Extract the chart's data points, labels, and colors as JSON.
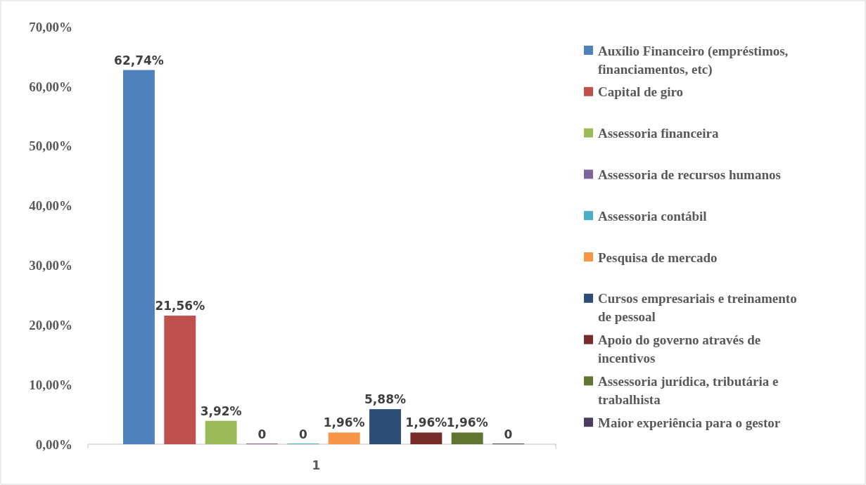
{
  "chart_data": {
    "type": "bar",
    "categories": [
      "1"
    ],
    "ylim": [
      0,
      70
    ],
    "yticks": [
      {
        "value": 0,
        "label": "0,00%"
      },
      {
        "value": 10,
        "label": "10,00%"
      },
      {
        "value": 20,
        "label": "20,00%"
      },
      {
        "value": 30,
        "label": "30,00%"
      },
      {
        "value": 40,
        "label": "40,00%"
      },
      {
        "value": 50,
        "label": "50,00%"
      },
      {
        "value": 60,
        "label": "60,00%"
      },
      {
        "value": 70,
        "label": "70,00%"
      }
    ],
    "grid": false,
    "legend": "right",
    "series": [
      {
        "name": "Auxílio Financeiro (empréstimos, financiamentos, etc)",
        "color": "#4f81bd",
        "values": [
          62.74
        ],
        "value_labels": [
          "62,74%"
        ]
      },
      {
        "name": "Capital de giro",
        "color": "#c0504d",
        "values": [
          21.56
        ],
        "value_labels": [
          "21,56%"
        ]
      },
      {
        "name": "Assessoria financeira",
        "color": "#9bbb59",
        "values": [
          3.92
        ],
        "value_labels": [
          "3,92%"
        ]
      },
      {
        "name": "Assessoria de recursos humanos",
        "color": "#8064a2",
        "values": [
          0
        ],
        "value_labels": [
          "0"
        ]
      },
      {
        "name": "Assessoria contábil",
        "color": "#4bacc6",
        "values": [
          0
        ],
        "value_labels": [
          "0"
        ]
      },
      {
        "name": "Pesquisa de mercado",
        "color": "#f79646",
        "values": [
          1.96
        ],
        "value_labels": [
          "1,96%"
        ]
      },
      {
        "name": "Cursos empresariais e treinamento de pessoal",
        "color": "#2c4d75",
        "values": [
          5.88
        ],
        "value_labels": [
          "5,88%"
        ]
      },
      {
        "name": "Apoio do governo através de incentivos",
        "color": "#772c2a",
        "values": [
          1.96
        ],
        "value_labels": [
          "1,96%"
        ]
      },
      {
        "name": "Assessoria jurídica, tributária e trabalhista",
        "color": "#5f7530",
        "values": [
          1.96
        ],
        "value_labels": [
          "1,96%"
        ]
      },
      {
        "name": "Maior experiência para o gestor",
        "color": "#4d3b62",
        "values": [
          0
        ],
        "value_labels": [
          "0"
        ]
      }
    ]
  }
}
